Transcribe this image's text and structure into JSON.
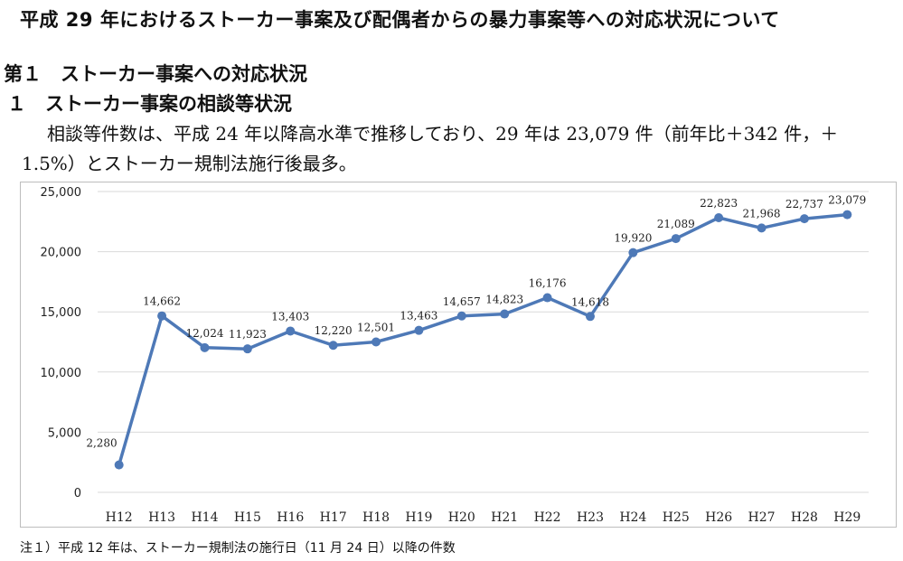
{
  "document": {
    "title": "平成 29 年におけるストーカー事案及び配偶者からの暴力事案等への対応状況について",
    "section_heading": "第１　ストーカー事案への対応状況",
    "subsection_heading": "１　ストーカー事案の相談等状況",
    "body_text": "相談等件数は、平成 24 年以降高水準で推移しており、29 年は 23,079 件（前年比＋342 件，＋1.5%）とストーカー規制法施行後最多。",
    "note": "注１）平成 12 年は、ストーカー規制法の施行日（11 月 24 日）以降の件数"
  },
  "chart_data": {
    "type": "line",
    "title": "",
    "xlabel": "",
    "ylabel": "",
    "categories": [
      "H12",
      "H13",
      "H14",
      "H15",
      "H16",
      "H17",
      "H18",
      "H19",
      "H20",
      "H21",
      "H22",
      "H23",
      "H24",
      "H25",
      "H26",
      "H27",
      "H28",
      "H29"
    ],
    "series": [
      {
        "values": [
          2280,
          14662,
          12024,
          11923,
          13403,
          12220,
          12501,
          13463,
          14657,
          14823,
          16176,
          14618,
          19920,
          21089,
          22823,
          21968,
          22737,
          23079
        ]
      }
    ],
    "data_labels": [
      "2,280",
      "14,662",
      "12,024",
      "11,923",
      "13,403",
      "12,220",
      "12,501",
      "13,463",
      "14,657",
      "14,823",
      "16,176",
      "14,618",
      "19,920",
      "21,089",
      "22,823",
      "21,968",
      "22,737",
      "23,079"
    ],
    "yticks": [
      0,
      5000,
      10000,
      15000,
      20000,
      25000
    ],
    "ytick_labels": [
      "0",
      "5,000",
      "10,000",
      "15,000",
      "20,000",
      "25,000"
    ],
    "ylim": [
      0,
      25000
    ],
    "grid": true,
    "legend": "none",
    "line_color": "#4e79b7",
    "grid_color": "#d9d9d9"
  }
}
